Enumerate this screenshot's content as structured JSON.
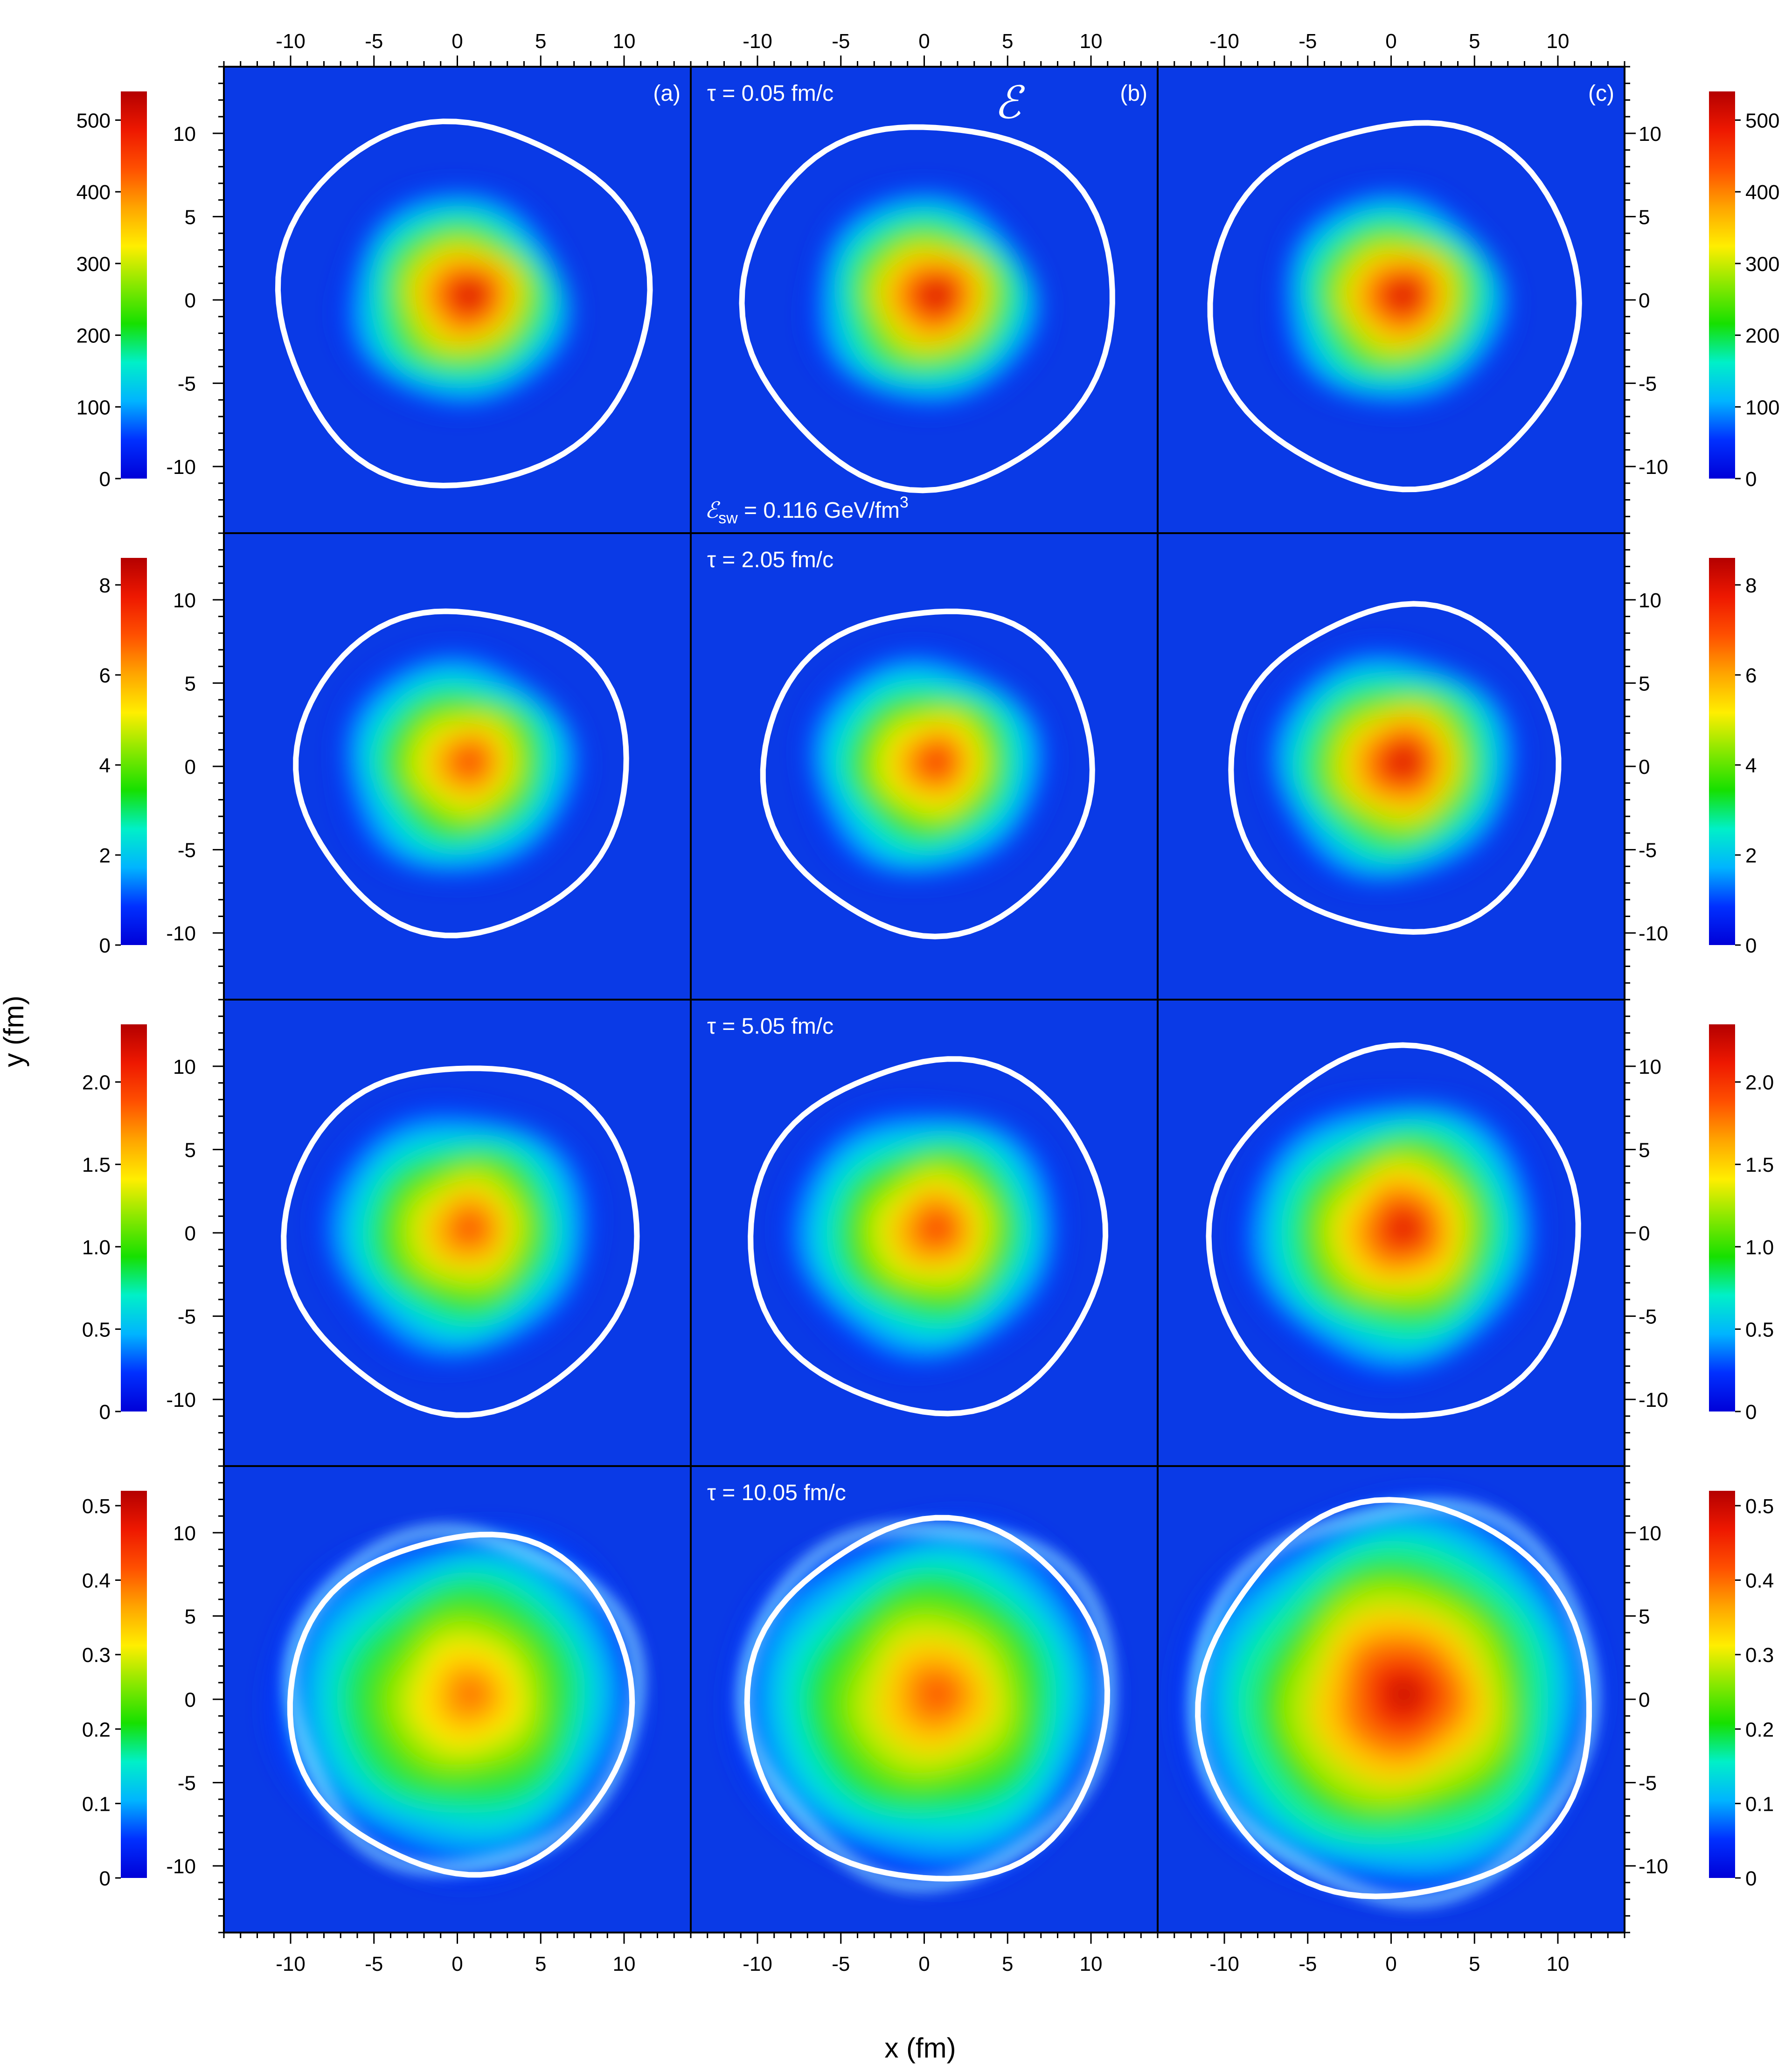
{
  "figure": {
    "symbol": "ℰ",
    "xlabel": "x (fm)",
    "ylabel": "y (fm)",
    "switch_label": {
      "symbol": "ℰ",
      "sub": "sw",
      "rest": " = 0.116 GeV/fm",
      "sup": "3"
    }
  },
  "colors": {
    "background": "#0a3ae6",
    "contour": "#ffffff",
    "colormap": [
      "#0000d8",
      "#0030ff",
      "#00b4ff",
      "#00f0c8",
      "#16e000",
      "#88e800",
      "#ffee00",
      "#ffa500",
      "#ff5000",
      "#ee1800",
      "#b40000"
    ]
  },
  "chart_data": {
    "type": "heatmap",
    "quantity": "energy density",
    "columns": [
      "(a)",
      "(b)",
      "(c)"
    ],
    "x_ticks": [
      -10,
      -5,
      0,
      5,
      10
    ],
    "y_ticks": [
      -10,
      -5,
      0,
      5,
      10
    ],
    "xlim": [
      -14,
      14
    ],
    "ylim": [
      -14,
      14
    ],
    "rows": [
      {
        "time": "τ = 0.05 fm/c",
        "colorbar_ticks": [
          "0",
          "100",
          "200",
          "300",
          "400",
          "500"
        ],
        "colorbar_max": 540,
        "peak_fraction": [
          0.98,
          0.98,
          0.98
        ],
        "contour_radius": [
          11.0,
          11.0,
          11.0
        ],
        "blob_radius": [
          7.0,
          7.0,
          7.0
        ]
      },
      {
        "time": "τ = 2.05 fm/c",
        "colorbar_ticks": [
          "0",
          "2",
          "4",
          "6",
          "8"
        ],
        "colorbar_max": 8.6,
        "peak_fraction": [
          0.86,
          0.88,
          0.97
        ],
        "contour_radius": [
          9.8,
          9.8,
          9.8
        ],
        "blob_radius": [
          7.3,
          7.3,
          7.6
        ]
      },
      {
        "time": "τ = 5.05 fm/c",
        "colorbar_ticks": [
          "0",
          "0.5",
          "1.0",
          "1.5",
          "2.0"
        ],
        "colorbar_max": 2.35,
        "peak_fraction": [
          0.84,
          0.86,
          0.94
        ],
        "contour_radius": [
          10.5,
          10.6,
          11.1
        ],
        "blob_radius": [
          8.2,
          8.3,
          9.0
        ]
      },
      {
        "time": "τ = 10.05 fm/c",
        "colorbar_ticks": [
          "0",
          "0.1",
          "0.2",
          "0.3",
          "0.4",
          "0.5"
        ],
        "colorbar_max": 0.52,
        "peak_fraction": [
          0.78,
          0.82,
          0.97
        ],
        "contour_radius": [
          10.2,
          10.8,
          11.8
        ],
        "blob_radius": [
          11.0,
          11.4,
          12.6
        ]
      }
    ]
  }
}
